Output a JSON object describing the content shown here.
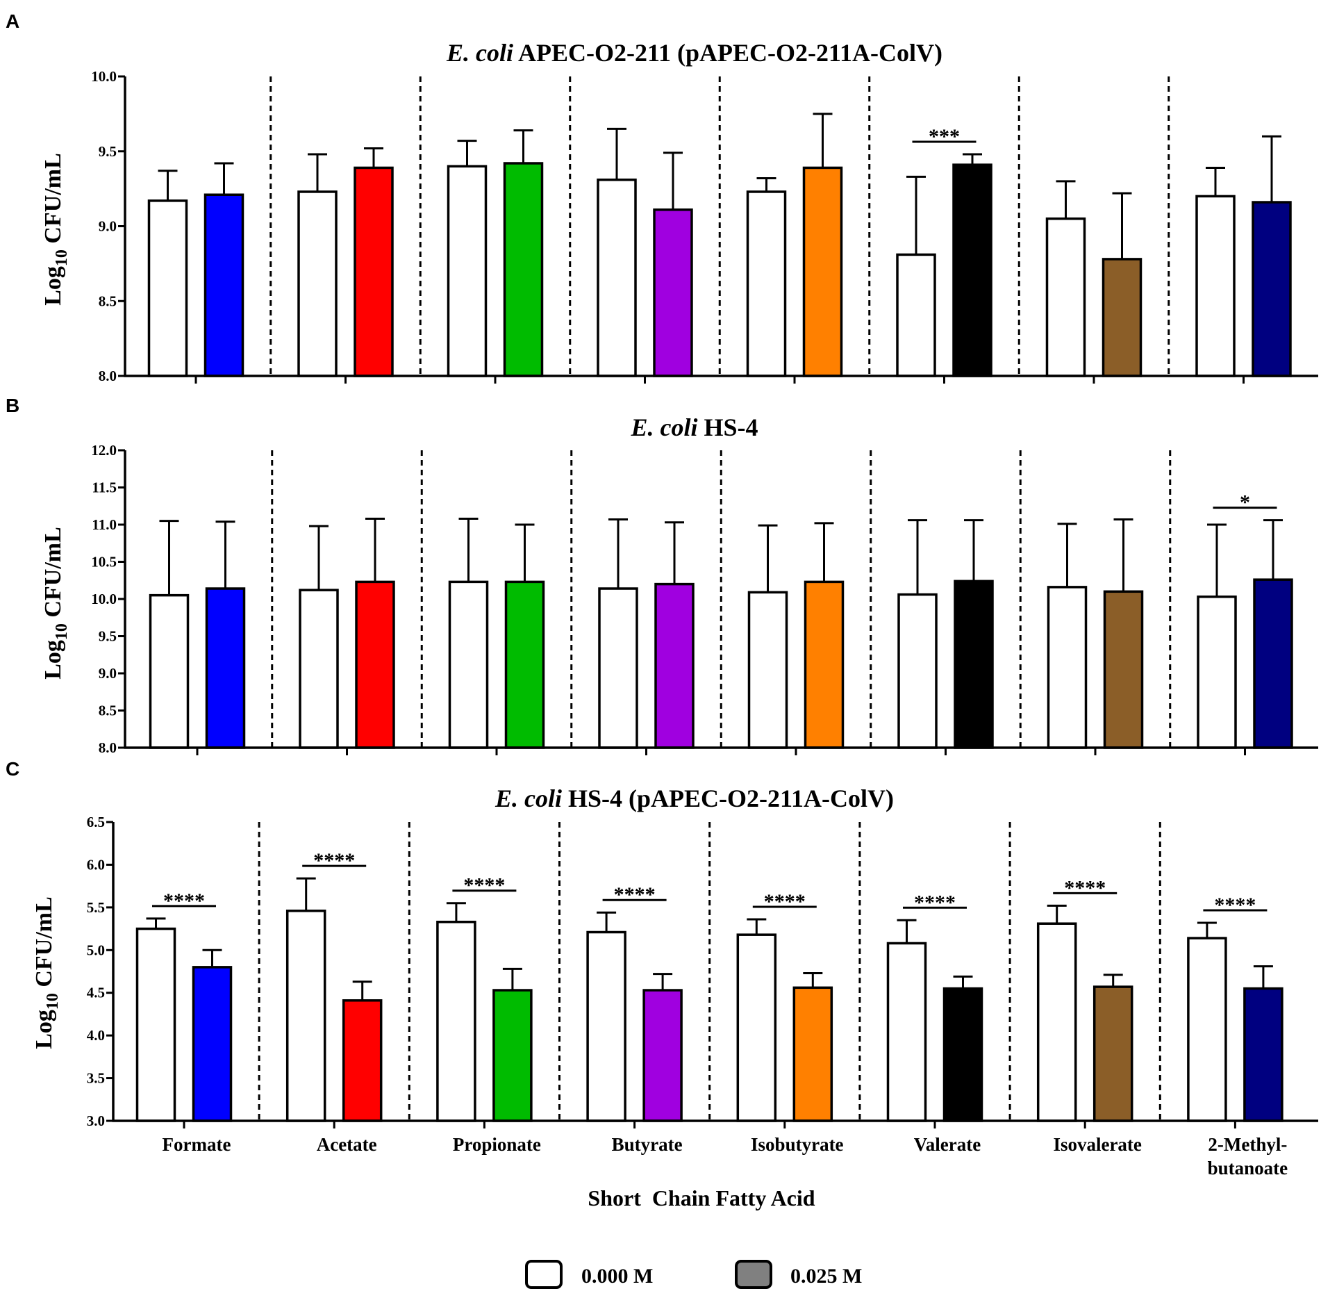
{
  "categories": [
    "Formate",
    "Acetate",
    "Propionate",
    "Butyrate",
    "Isobutyrate",
    "Valerate",
    "Isovalerate",
    "2-Methyl-butanoate"
  ],
  "category_label_lines": [
    [
      "Formate"
    ],
    [
      "Acetate"
    ],
    [
      "Propionate"
    ],
    [
      "Butyrate"
    ],
    [
      "Isobutyrate"
    ],
    [
      "Valerate"
    ],
    [
      "Isovalerate"
    ],
    [
      "2-Methyl-",
      "butanoate"
    ]
  ],
  "treatment_colors": [
    "#0000ff",
    "#ff0000",
    "#00bb00",
    "#a000e0",
    "#ff8000",
    "#000000",
    "#8b5e28",
    "#000080"
  ],
  "control_color": "#ffffff",
  "xlabel": "Short  Chain Fatty Acid",
  "ylabel": {
    "main": "Log",
    "sub": "10",
    "rest": " CFU/mL"
  },
  "legend": [
    {
      "label": "0.000 M",
      "color": "#ffffff"
    },
    {
      "label": "0.025 M",
      "color": "#808080"
    }
  ],
  "chart_data": [
    {
      "panel": "A",
      "type": "bar",
      "title": {
        "italic": "E. coli",
        "rest": " APEC-O2-211 (pAPEC-O2-211A-ColV)"
      },
      "ylim": [
        8.0,
        10.0
      ],
      "yticks": [
        "8.0",
        "8.5",
        "9.0",
        "9.5",
        "10.0"
      ],
      "categories": [
        "Formate",
        "Acetate",
        "Propionate",
        "Butyrate",
        "Isobutyrate",
        "Valerate",
        "Isovalerate",
        "2-Methyl-butanoate"
      ],
      "series": [
        {
          "name": "0.000 M",
          "values": [
            9.17,
            9.23,
            9.4,
            9.31,
            9.23,
            8.81,
            9.05,
            9.2
          ],
          "errors": [
            0.2,
            0.25,
            0.17,
            0.34,
            0.09,
            0.52,
            0.25,
            0.19
          ]
        },
        {
          "name": "0.025 M",
          "values": [
            9.21,
            9.39,
            9.42,
            9.11,
            9.39,
            9.41,
            8.78,
            9.16
          ],
          "errors": [
            0.21,
            0.13,
            0.22,
            0.38,
            0.36,
            0.07,
            0.44,
            0.44
          ]
        }
      ],
      "significance": [
        "",
        "",
        "",
        "",
        "",
        "***",
        "",
        ""
      ]
    },
    {
      "panel": "B",
      "type": "bar",
      "title": {
        "italic": "E. coli",
        "rest": " HS-4"
      },
      "ylim": [
        8.0,
        12.0
      ],
      "yticks": [
        "8.0",
        "8.5",
        "9.0",
        "9.5",
        "10.0",
        "10.5",
        "11.0",
        "11.5",
        "12.0"
      ],
      "categories": [
        "Formate",
        "Acetate",
        "Propionate",
        "Butyrate",
        "Isobutyrate",
        "Valerate",
        "Isovalerate",
        "2-Methyl-butanoate"
      ],
      "series": [
        {
          "name": "0.000 M",
          "values": [
            10.05,
            10.12,
            10.23,
            10.14,
            10.09,
            10.06,
            10.16,
            10.03
          ],
          "errors": [
            1.0,
            0.86,
            0.85,
            0.93,
            0.9,
            1.0,
            0.85,
            0.97
          ]
        },
        {
          "name": "0.025 M",
          "values": [
            10.14,
            10.23,
            10.23,
            10.2,
            10.23,
            10.24,
            10.1,
            10.26
          ],
          "errors": [
            0.9,
            0.85,
            0.77,
            0.83,
            0.79,
            0.82,
            0.97,
            0.8
          ]
        }
      ],
      "significance": [
        "",
        "",
        "",
        "",
        "",
        "",
        "",
        "*"
      ]
    },
    {
      "panel": "C",
      "type": "bar",
      "title": {
        "italic": "E. coli",
        "rest": " HS-4 (pAPEC-O2-211A-ColV)"
      },
      "ylim": [
        3.0,
        6.5
      ],
      "yticks": [
        "3.0",
        "3.5",
        "4.0",
        "4.5",
        "5.0",
        "5.5",
        "6.0",
        "6.5"
      ],
      "categories": [
        "Formate",
        "Acetate",
        "Propionate",
        "Butyrate",
        "Isobutyrate",
        "Valerate",
        "Isovalerate",
        "2-Methyl-butanoate"
      ],
      "series": [
        {
          "name": "0.000 M",
          "values": [
            5.25,
            5.46,
            5.33,
            5.21,
            5.18,
            5.08,
            5.31,
            5.14
          ],
          "errors": [
            0.12,
            0.38,
            0.22,
            0.23,
            0.18,
            0.27,
            0.21,
            0.18
          ]
        },
        {
          "name": "0.025 M",
          "values": [
            4.8,
            4.41,
            4.53,
            4.53,
            4.56,
            4.55,
            4.57,
            4.55
          ],
          "errors": [
            0.2,
            0.22,
            0.25,
            0.19,
            0.17,
            0.14,
            0.14,
            0.26
          ]
        }
      ],
      "significance": [
        "****",
        "****",
        "****",
        "****",
        "****",
        "****",
        "****",
        "****"
      ]
    }
  ]
}
